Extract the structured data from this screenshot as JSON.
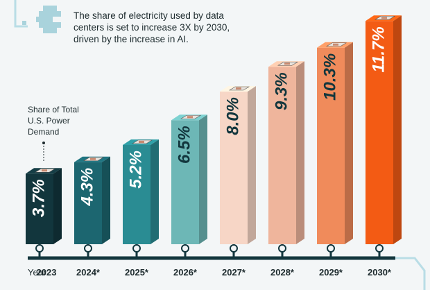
{
  "chart_data": {
    "type": "bar",
    "title": "The share of electricity used by data centers is set to increase 3X by 2030, driven by the increase in AI.",
    "annotation": "Share of Total U.S. Power Demand",
    "x_label": "Year:",
    "categories": [
      "2023",
      "2024*",
      "2025*",
      "2026*",
      "2027*",
      "2028*",
      "2029*",
      "2030*"
    ],
    "values": [
      3.7,
      4.3,
      5.2,
      6.5,
      8.0,
      9.3,
      10.3,
      11.7
    ],
    "value_labels": [
      "3.7%",
      "4.3%",
      "5.2%",
      "6.5%",
      "8.0%",
      "9.3%",
      "10.3%",
      "11.7%"
    ],
    "colors": [
      "#12363d",
      "#1c6670",
      "#2a8c93",
      "#6db7b6",
      "#f7d6c6",
      "#efb59c",
      "#f08b5b",
      "#f35b14"
    ]
  }
}
